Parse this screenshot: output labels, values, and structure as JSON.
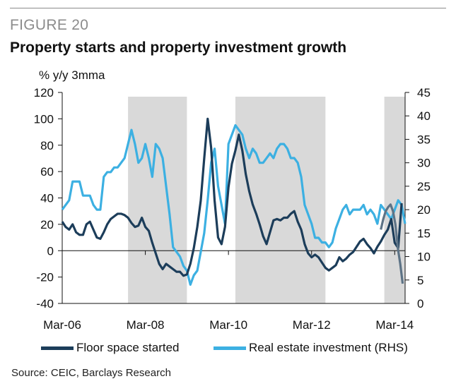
{
  "figure": {
    "label": "FIGURE 20",
    "title": "Property starts and property investment growth",
    "source": "Source: CEIC, Barclays Research"
  },
  "colors": {
    "floor": "#1c3d5a",
    "floor_gray": "#5d7386",
    "invest": "#3cb0e2",
    "shade": "#d9d9d9",
    "axis": "#111111"
  },
  "chart_data": {
    "type": "line",
    "title": "Property starts and property investment growth",
    "ylabel": "% y/y 3mma",
    "ylabel_right": "",
    "xlabel": "",
    "ylim": [
      -40,
      120
    ],
    "ylim_right": [
      0,
      45
    ],
    "yticks": [
      -40,
      -20,
      0,
      20,
      40,
      60,
      80,
      100,
      120
    ],
    "yticks_right": [
      0,
      5,
      10,
      15,
      20,
      25,
      30,
      35,
      40,
      45
    ],
    "xlim": [
      0,
      99
    ],
    "x_tick_labels": [
      {
        "x": 0,
        "label": "Mar-06"
      },
      {
        "x": 24,
        "label": "Mar-08"
      },
      {
        "x": 48,
        "label": "Mar-10"
      },
      {
        "x": 72,
        "label": "Mar-12"
      },
      {
        "x": 96,
        "label": "Mar-14"
      }
    ],
    "shaded_periods": [
      [
        19,
        36
      ],
      [
        50,
        76
      ],
      [
        93,
        99
      ]
    ],
    "series": [
      {
        "name": "Floor space started",
        "axis": "left",
        "x": [
          0,
          1,
          2,
          3,
          4,
          5,
          6,
          7,
          8,
          9,
          10,
          11,
          12,
          13,
          14,
          15,
          16,
          17,
          18,
          19,
          20,
          21,
          22,
          23,
          24,
          25,
          26,
          27,
          28,
          29,
          30,
          31,
          32,
          33,
          34,
          35,
          36,
          37,
          38,
          39,
          40,
          41,
          42,
          43,
          44,
          45,
          46,
          47,
          48,
          49,
          50,
          51,
          52,
          53,
          54,
          55,
          56,
          57,
          58,
          59,
          60,
          61,
          62,
          63,
          64,
          65,
          66,
          67,
          68,
          69,
          70,
          71,
          72,
          73,
          74,
          75,
          76,
          77,
          78,
          79,
          80,
          81,
          82,
          83,
          84,
          85,
          86,
          87,
          88,
          89,
          90,
          91,
          92,
          93,
          94,
          95,
          96,
          97,
          98
        ],
        "values": [
          22,
          18,
          16,
          20,
          14,
          12,
          12,
          20,
          22,
          16,
          10,
          9,
          14,
          20,
          24,
          26,
          28,
          28,
          27,
          25,
          21,
          18,
          19,
          25,
          18,
          15,
          6,
          -2,
          -10,
          -14,
          -10,
          -12,
          -14,
          -16,
          -16,
          -19,
          -18,
          -10,
          2,
          18,
          38,
          70,
          100,
          78,
          38,
          10,
          5,
          18,
          48,
          66,
          76,
          88,
          76,
          58,
          45,
          35,
          28,
          20,
          11,
          5,
          14,
          23,
          24,
          23,
          25,
          25,
          28,
          30,
          22,
          16,
          5,
          -2,
          -5,
          -3,
          -5,
          -9,
          -13,
          -15,
          -13,
          -11,
          -5,
          -8,
          -6,
          -3,
          -1,
          3,
          7,
          9,
          5,
          2,
          -2,
          3,
          7,
          12,
          16,
          24,
          6,
          2,
          36
        ],
        "gray_from": 92,
        "gray_values": [
          16,
          24,
          30,
          33,
          35,
          30,
          20,
          2,
          -10,
          -25
        ]
      },
      {
        "name": "Real estate investment (RHS)",
        "axis": "right",
        "x": [
          0,
          1,
          2,
          3,
          4,
          5,
          6,
          7,
          8,
          9,
          10,
          11,
          12,
          13,
          14,
          15,
          16,
          17,
          18,
          19,
          20,
          21,
          22,
          23,
          24,
          25,
          26,
          27,
          28,
          29,
          30,
          31,
          32,
          33,
          34,
          35,
          36,
          37,
          38,
          39,
          40,
          41,
          42,
          43,
          44,
          45,
          46,
          47,
          48,
          49,
          50,
          51,
          52,
          53,
          54,
          55,
          56,
          57,
          58,
          59,
          60,
          61,
          62,
          63,
          64,
          65,
          66,
          67,
          68,
          69,
          70,
          71,
          72,
          73,
          74,
          75,
          76,
          77,
          78,
          79,
          80,
          81,
          82,
          83,
          84,
          85,
          86,
          87,
          88,
          89,
          90,
          91,
          92,
          93,
          94,
          95,
          96,
          97,
          98,
          99
        ],
        "values": [
          20,
          21,
          22,
          26,
          26,
          26,
          23,
          23,
          23,
          21,
          20,
          20,
          27,
          28,
          28,
          29,
          29,
          30,
          31,
          34,
          37,
          34,
          30,
          31,
          34,
          31,
          27,
          34,
          33,
          31,
          25,
          19,
          12,
          11,
          10,
          8,
          7,
          4,
          6,
          7,
          11,
          15,
          22,
          30,
          33,
          25,
          21,
          17,
          34,
          36,
          38,
          37,
          36,
          33,
          31,
          33,
          32,
          30,
          30,
          31,
          32,
          31,
          33,
          34,
          34,
          33,
          31,
          31,
          30,
          27,
          21,
          19,
          17,
          14,
          14,
          13,
          13,
          12,
          13,
          16,
          18,
          20,
          21,
          19,
          20,
          20,
          20,
          21,
          19,
          20,
          19,
          17,
          21,
          20,
          19,
          18,
          20,
          22,
          21,
          17
        ],
        "shade_extra": true
      }
    ],
    "legend": [
      {
        "label": "Floor space started",
        "color": "#1c3d5a"
      },
      {
        "label": "Real estate investment (RHS)",
        "color": "#3cb0e2"
      }
    ]
  }
}
